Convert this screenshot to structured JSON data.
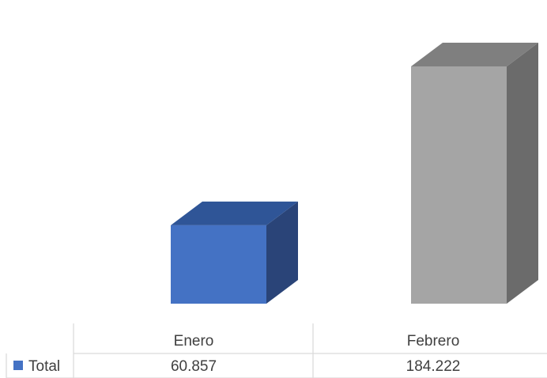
{
  "chart_data": {
    "type": "bar",
    "style": "3d-column-with-data-table",
    "categories": [
      "Enero",
      "Febrero"
    ],
    "series": [
      {
        "name": "Total",
        "values": [
          60857,
          184222
        ],
        "labels": [
          "60.857",
          "184.222"
        ]
      }
    ],
    "title": "",
    "xlabel": "",
    "ylabel": "",
    "ylim": [
      0,
      210000
    ],
    "grid": false,
    "legend": "data-table-left",
    "colors": {
      "Enero_front": "#4472c4",
      "Enero_top": "#2f5597",
      "Enero_side": "#2a4478",
      "Febrero_front": "#a5a5a5",
      "Febrero_top": "#7f7f7f",
      "Febrero_side": "#6b6b6b",
      "legend_key": "#4472c4",
      "table_line": "#d9d9d9",
      "text": "#404040"
    }
  }
}
